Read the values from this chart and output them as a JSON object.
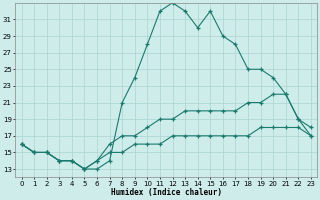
{
  "xlabel": "Humidex (Indice chaleur)",
  "bg_color": "#ceecea",
  "grid_color": "#aad4d0",
  "line_color": "#1a7a6e",
  "xlim": [
    -0.5,
    23.5
  ],
  "ylim": [
    12,
    33
  ],
  "xticks": [
    0,
    1,
    2,
    3,
    4,
    5,
    6,
    7,
    8,
    9,
    10,
    11,
    12,
    13,
    14,
    15,
    16,
    17,
    18,
    19,
    20,
    21,
    22,
    23
  ],
  "yticks": [
    13,
    15,
    17,
    19,
    21,
    23,
    25,
    27,
    29,
    31
  ],
  "curve1_x": [
    0,
    1,
    2,
    3,
    4,
    5,
    6,
    7,
    8,
    9,
    10,
    11,
    12,
    13,
    14,
    15,
    16,
    17,
    18,
    19,
    20,
    21,
    22,
    23
  ],
  "curve1_y": [
    16,
    15,
    15,
    14,
    14,
    13,
    13,
    14,
    21,
    24,
    28,
    32,
    33,
    32,
    30,
    32,
    29,
    28,
    25,
    25,
    24,
    22,
    19,
    17
  ],
  "curve2_x": [
    0,
    1,
    2,
    3,
    4,
    5,
    6,
    7,
    8,
    9,
    10,
    11,
    12,
    13,
    14,
    15,
    16,
    17,
    18,
    19,
    20,
    21,
    22,
    23
  ],
  "curve2_y": [
    16,
    15,
    15,
    14,
    14,
    13,
    14,
    16,
    17,
    17,
    18,
    19,
    19,
    20,
    20,
    20,
    20,
    20,
    21,
    21,
    22,
    22,
    19,
    18
  ],
  "curve3_x": [
    0,
    1,
    2,
    3,
    4,
    5,
    6,
    7,
    8,
    9,
    10,
    11,
    12,
    13,
    14,
    15,
    16,
    17,
    18,
    19,
    20,
    21,
    22,
    23
  ],
  "curve3_y": [
    16,
    15,
    15,
    14,
    14,
    13,
    14,
    15,
    15,
    16,
    16,
    16,
    17,
    17,
    17,
    17,
    17,
    17,
    17,
    18,
    18,
    18,
    18,
    17
  ]
}
